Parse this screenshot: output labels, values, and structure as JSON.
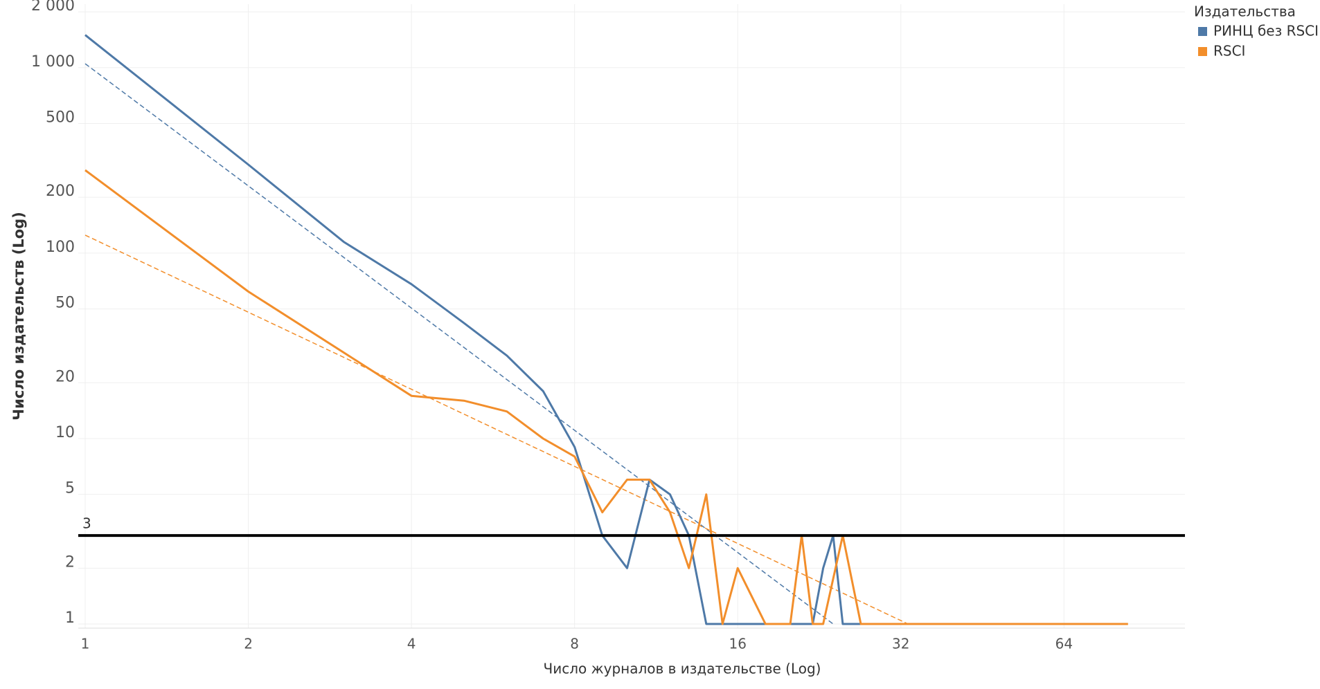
{
  "chart_data": {
    "type": "line",
    "x_label": "Число журналов в издательстве (Log)",
    "y_label": "Число издательств (Log)",
    "legend_title": "Издательства",
    "legend": "top-right",
    "log_x": true,
    "log_y": true,
    "grid": true,
    "xlim": [
      1,
      107
    ],
    "ylim": [
      0.95,
      2200
    ],
    "xticks": [
      1,
      2,
      4,
      8,
      16,
      32,
      64
    ],
    "yticks": [
      1,
      2,
      5,
      10,
      20,
      50,
      100,
      200,
      500,
      {
        "value": 1000,
        "label": "1 000"
      },
      {
        "value": 2000,
        "label": "2 000"
      }
    ],
    "series": [
      {
        "name": "РИНЦ без RSCI",
        "color": "#4e79a7",
        "x": [
          1,
          2,
          3,
          4,
          5,
          6,
          7,
          8,
          9,
          10,
          11,
          12,
          13,
          14,
          22,
          23,
          24,
          25,
          40
        ],
        "values": [
          1500,
          300,
          115,
          68,
          42,
          28,
          18,
          9,
          3,
          2,
          6,
          5,
          3,
          1,
          1,
          2,
          3,
          1,
          1
        ]
      },
      {
        "name": "RSCI",
        "color": "#f28e2b",
        "x": [
          1,
          2,
          4,
          5,
          6,
          7,
          8,
          9,
          10,
          11,
          12,
          13,
          14,
          15,
          16,
          18,
          20,
          21,
          22,
          23,
          25,
          27,
          84
        ],
        "values": [
          280,
          62,
          17,
          16,
          14,
          10,
          8,
          4,
          6,
          6,
          4,
          2,
          5,
          1,
          2,
          1,
          1,
          3,
          1,
          1,
          3,
          1,
          1
        ]
      }
    ],
    "trend_lines": [
      {
        "color": "#4e79a7",
        "x": [
          1,
          24
        ],
        "values": [
          1050,
          1
        ]
      },
      {
        "color": "#f28e2b",
        "x": [
          1,
          33
        ],
        "values": [
          125,
          1
        ]
      }
    ],
    "reference_line": 3
  }
}
